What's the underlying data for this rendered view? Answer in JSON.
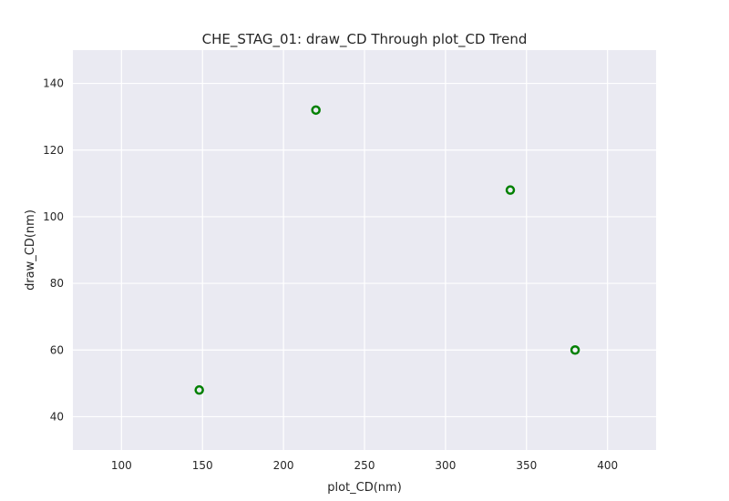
{
  "chart_data": {
    "type": "scatter",
    "title": "CHE_STAG_01: draw_CD Through plot_CD Trend",
    "xlabel": "plot_CD(nm)",
    "ylabel": "draw_CD(nm)",
    "xlim": [
      70,
      430
    ],
    "ylim": [
      30,
      150
    ],
    "xticks": [
      100,
      150,
      200,
      250,
      300,
      350,
      400
    ],
    "yticks": [
      40,
      60,
      80,
      100,
      120,
      140
    ],
    "grid": true,
    "point_color": "#008000",
    "background_color": "#EAEAF2",
    "points": [
      {
        "x": 148,
        "y": 48
      },
      {
        "x": 220,
        "y": 132
      },
      {
        "x": 340,
        "y": 108
      },
      {
        "x": 380,
        "y": 60
      }
    ]
  }
}
